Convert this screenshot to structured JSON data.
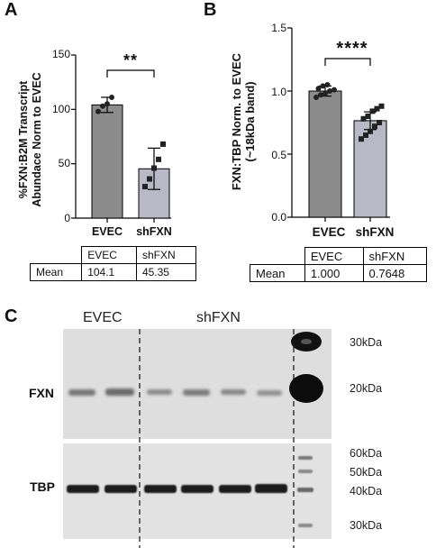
{
  "chart_data": [
    {
      "panel": "A",
      "type": "bar",
      "categories": [
        "EVEC",
        "shFXN"
      ],
      "values": [
        104.1,
        45.35
      ],
      "errors": [
        7,
        19
      ],
      "points": [
        [
          98,
          103,
          105,
          111
        ],
        [
          29,
          36,
          46,
          54,
          68
        ]
      ],
      "ylabel": "%FXN:B2M Transcript Abundace Norm to EVEC",
      "ylim": [
        0,
        150
      ],
      "yticks": [
        "0",
        "50",
        "100",
        "150"
      ],
      "significance": "**",
      "table": {
        "headers": [
          "",
          "EVEC",
          "shFXN"
        ],
        "row_label": "Mean",
        "values": [
          "104.1",
          "45.35"
        ]
      }
    },
    {
      "panel": "B",
      "type": "bar",
      "categories": [
        "EVEC",
        "shFXN"
      ],
      "values": [
        1.0,
        0.7648
      ],
      "errors": [
        0.04,
        0.07
      ],
      "points": [
        [
          0.95,
          0.97,
          0.98,
          1.0,
          1.01,
          1.02,
          1.04,
          1.05
        ],
        [
          0.62,
          0.65,
          0.68,
          0.72,
          0.75,
          0.78,
          0.8,
          0.84,
          0.86,
          0.88
        ]
      ],
      "ylabel": "FXN:TBP Norm. to EVEC (~18kDa band)",
      "ylim": [
        0,
        1.5
      ],
      "yticks": [
        "0.0",
        "0.5",
        "1.0",
        "1.5"
      ],
      "significance": "****",
      "table": {
        "headers": [
          "",
          "EVEC",
          "shFXN"
        ],
        "row_label": "Mean",
        "values": [
          "1.000",
          "0.7648"
        ]
      }
    }
  ],
  "panels": {
    "a": "A",
    "b": "B",
    "c": "C"
  },
  "blot": {
    "lane_labels": [
      "EVEC",
      "shFXN"
    ],
    "row_labels": [
      "FXN",
      "TBP"
    ],
    "mw_top": [
      "30kDa",
      "20kDa"
    ],
    "mw_bottom": [
      "60kDa",
      "50kDa",
      "40kDa",
      "30kDa"
    ]
  },
  "colors": {
    "evec_bar": "#8c8c8c",
    "shfxn_bar": "#b8b8c6",
    "blot_bg": "#dedede",
    "band": "#222222"
  }
}
